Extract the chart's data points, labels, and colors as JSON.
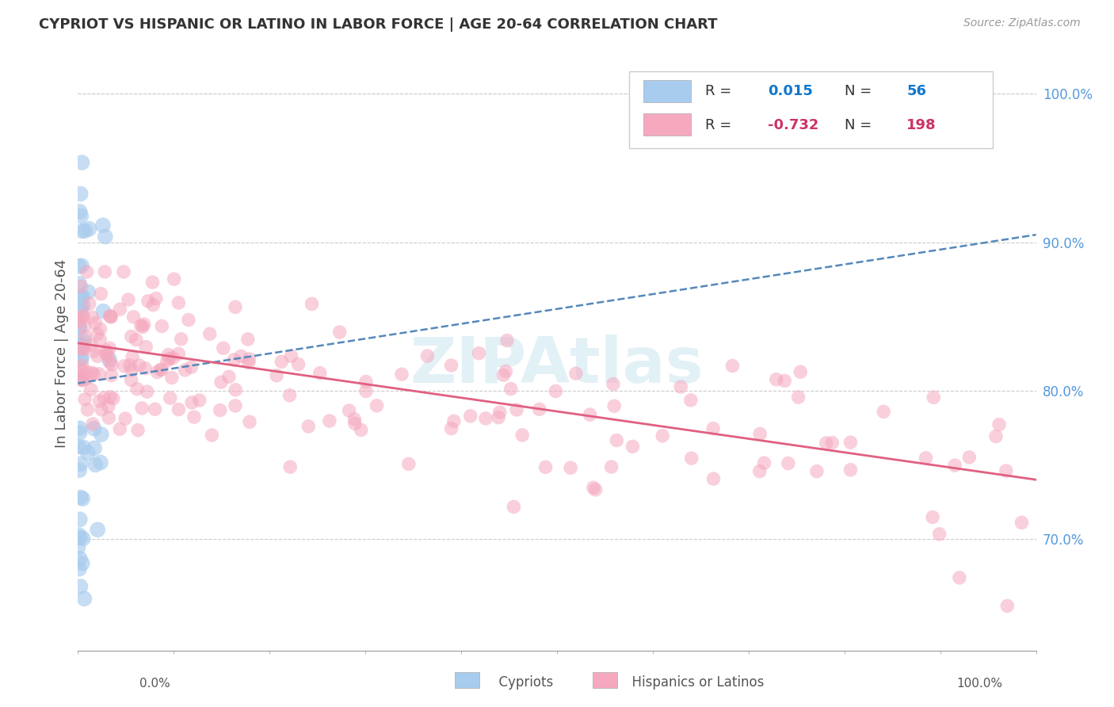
{
  "title": "CYPRIOT VS HISPANIC OR LATINO IN LABOR FORCE | AGE 20-64 CORRELATION CHART",
  "source_text": "Source: ZipAtlas.com",
  "ylabel": "In Labor Force | Age 20-64",
  "watermark": "ZIPAtlas",
  "blue_color": "#a8ccee",
  "pink_color": "#f5a8be",
  "blue_line_color": "#5588bb",
  "pink_line_color": "#e06080",
  "grid_color": "#cccccc",
  "background_color": "#ffffff",
  "blue_R": 0.015,
  "pink_R": -0.732,
  "blue_N": 56,
  "pink_N": 198,
  "xmin": 0.0,
  "xmax": 1.0,
  "ymin": 0.625,
  "ymax": 1.025,
  "right_ytick_labels": [
    "100.0%",
    "90.0%",
    "80.0%",
    "70.0%"
  ],
  "right_ytick_values": [
    1.0,
    0.9,
    0.8,
    0.7
  ],
  "blue_trend_start": 0.805,
  "blue_trend_end": 0.905,
  "pink_trend_start": 0.832,
  "pink_trend_end": 0.74
}
